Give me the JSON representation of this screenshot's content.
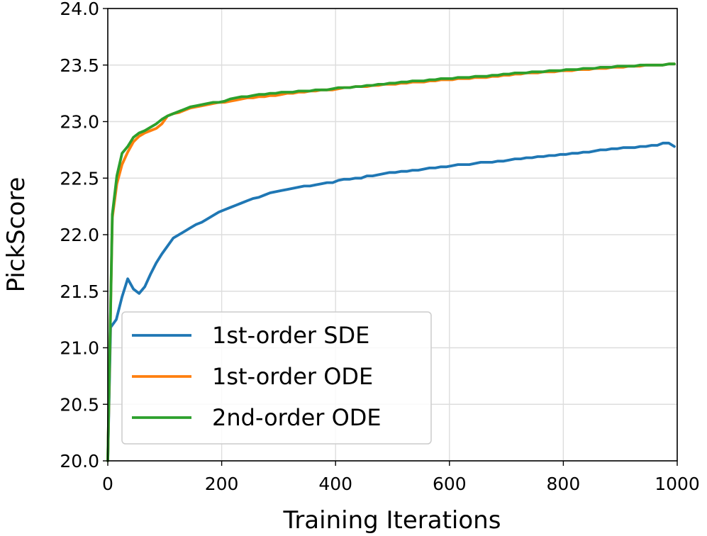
{
  "chart_data": {
    "type": "line",
    "title": "",
    "xlabel": "Training Iterations",
    "ylabel": "PickScore",
    "xlim": [
      0,
      1000
    ],
    "ylim": [
      20.0,
      24.0
    ],
    "xticks": [
      0,
      200,
      400,
      600,
      800,
      1000
    ],
    "xtick_labels": [
      "0",
      "200",
      "400",
      "600",
      "800",
      "1000"
    ],
    "yticks": [
      20.0,
      20.5,
      21.0,
      21.5,
      22.0,
      22.5,
      23.0,
      23.5,
      24.0
    ],
    "ytick_labels": [
      "20.0",
      "20.5",
      "21.0",
      "21.5",
      "22.0",
      "22.5",
      "23.0",
      "23.5",
      "24.0"
    ],
    "grid": true,
    "legend_position": "lower-left",
    "series": [
      {
        "name": "1st-order SDE",
        "color": "#1f77b4",
        "points": [
          [
            0,
            20.0
          ],
          [
            5,
            21.18
          ],
          [
            15,
            21.25
          ],
          [
            25,
            21.45
          ],
          [
            35,
            21.61
          ],
          [
            45,
            21.52
          ],
          [
            55,
            21.48
          ],
          [
            65,
            21.54
          ],
          [
            75,
            21.65
          ],
          [
            85,
            21.75
          ],
          [
            95,
            21.83
          ],
          [
            105,
            21.9
          ],
          [
            115,
            21.97
          ],
          [
            125,
            22.0
          ],
          [
            135,
            22.03
          ],
          [
            145,
            22.06
          ],
          [
            155,
            22.09
          ],
          [
            165,
            22.11
          ],
          [
            175,
            22.14
          ],
          [
            185,
            22.17
          ],
          [
            195,
            22.2
          ],
          [
            205,
            22.22
          ],
          [
            215,
            22.24
          ],
          [
            225,
            22.26
          ],
          [
            235,
            22.28
          ],
          [
            245,
            22.3
          ],
          [
            255,
            22.32
          ],
          [
            265,
            22.33
          ],
          [
            275,
            22.35
          ],
          [
            285,
            22.37
          ],
          [
            295,
            22.38
          ],
          [
            305,
            22.39
          ],
          [
            315,
            22.4
          ],
          [
            325,
            22.41
          ],
          [
            335,
            22.42
          ],
          [
            345,
            22.43
          ],
          [
            355,
            22.43
          ],
          [
            365,
            22.44
          ],
          [
            375,
            22.45
          ],
          [
            385,
            22.46
          ],
          [
            395,
            22.46
          ],
          [
            405,
            22.48
          ],
          [
            415,
            22.49
          ],
          [
            425,
            22.49
          ],
          [
            435,
            22.5
          ],
          [
            445,
            22.5
          ],
          [
            455,
            22.52
          ],
          [
            465,
            22.52
          ],
          [
            475,
            22.53
          ],
          [
            485,
            22.54
          ],
          [
            495,
            22.55
          ],
          [
            505,
            22.55
          ],
          [
            515,
            22.56
          ],
          [
            525,
            22.56
          ],
          [
            535,
            22.57
          ],
          [
            545,
            22.57
          ],
          [
            555,
            22.58
          ],
          [
            565,
            22.59
          ],
          [
            575,
            22.59
          ],
          [
            585,
            22.6
          ],
          [
            595,
            22.6
          ],
          [
            605,
            22.61
          ],
          [
            615,
            22.62
          ],
          [
            625,
            22.62
          ],
          [
            635,
            22.62
          ],
          [
            645,
            22.63
          ],
          [
            655,
            22.64
          ],
          [
            665,
            22.64
          ],
          [
            675,
            22.64
          ],
          [
            685,
            22.65
          ],
          [
            695,
            22.65
          ],
          [
            705,
            22.66
          ],
          [
            715,
            22.67
          ],
          [
            725,
            22.67
          ],
          [
            735,
            22.68
          ],
          [
            745,
            22.68
          ],
          [
            755,
            22.69
          ],
          [
            765,
            22.69
          ],
          [
            775,
            22.7
          ],
          [
            785,
            22.7
          ],
          [
            795,
            22.71
          ],
          [
            805,
            22.71
          ],
          [
            815,
            22.72
          ],
          [
            825,
            22.72
          ],
          [
            835,
            22.73
          ],
          [
            845,
            22.73
          ],
          [
            855,
            22.74
          ],
          [
            865,
            22.75
          ],
          [
            875,
            22.75
          ],
          [
            885,
            22.76
          ],
          [
            895,
            22.76
          ],
          [
            905,
            22.77
          ],
          [
            915,
            22.77
          ],
          [
            925,
            22.77
          ],
          [
            935,
            22.78
          ],
          [
            945,
            22.78
          ],
          [
            955,
            22.79
          ],
          [
            965,
            22.79
          ],
          [
            975,
            22.81
          ],
          [
            985,
            22.81
          ],
          [
            995,
            22.78
          ]
        ]
      },
      {
        "name": "1st-order ODE",
        "color": "#ff7f0e",
        "points": [
          [
            0,
            20.0
          ],
          [
            8,
            22.15
          ],
          [
            16,
            22.45
          ],
          [
            25,
            22.62
          ],
          [
            35,
            22.73
          ],
          [
            45,
            22.82
          ],
          [
            55,
            22.87
          ],
          [
            65,
            22.9
          ],
          [
            75,
            22.92
          ],
          [
            85,
            22.94
          ],
          [
            95,
            22.98
          ],
          [
            105,
            23.05
          ],
          [
            115,
            23.07
          ],
          [
            125,
            23.08
          ],
          [
            135,
            23.1
          ],
          [
            145,
            23.12
          ],
          [
            155,
            23.13
          ],
          [
            165,
            23.14
          ],
          [
            175,
            23.15
          ],
          [
            185,
            23.16
          ],
          [
            195,
            23.17
          ],
          [
            205,
            23.17
          ],
          [
            215,
            23.18
          ],
          [
            225,
            23.19
          ],
          [
            235,
            23.2
          ],
          [
            245,
            23.21
          ],
          [
            255,
            23.21
          ],
          [
            265,
            23.22
          ],
          [
            275,
            23.22
          ],
          [
            285,
            23.23
          ],
          [
            295,
            23.23
          ],
          [
            305,
            23.24
          ],
          [
            315,
            23.25
          ],
          [
            325,
            23.25
          ],
          [
            335,
            23.26
          ],
          [
            345,
            23.26
          ],
          [
            355,
            23.27
          ],
          [
            365,
            23.27
          ],
          [
            375,
            23.28
          ],
          [
            385,
            23.28
          ],
          [
            395,
            23.28
          ],
          [
            405,
            23.29
          ],
          [
            415,
            23.3
          ],
          [
            425,
            23.3
          ],
          [
            435,
            23.31
          ],
          [
            445,
            23.31
          ],
          [
            455,
            23.31
          ],
          [
            465,
            23.32
          ],
          [
            475,
            23.32
          ],
          [
            485,
            23.33
          ],
          [
            495,
            23.33
          ],
          [
            505,
            23.33
          ],
          [
            515,
            23.34
          ],
          [
            525,
            23.34
          ],
          [
            535,
            23.35
          ],
          [
            545,
            23.35
          ],
          [
            555,
            23.35
          ],
          [
            565,
            23.36
          ],
          [
            575,
            23.36
          ],
          [
            585,
            23.37
          ],
          [
            595,
            23.37
          ],
          [
            605,
            23.37
          ],
          [
            615,
            23.38
          ],
          [
            625,
            23.38
          ],
          [
            635,
            23.38
          ],
          [
            645,
            23.39
          ],
          [
            655,
            23.39
          ],
          [
            665,
            23.39
          ],
          [
            675,
            23.4
          ],
          [
            685,
            23.4
          ],
          [
            695,
            23.41
          ],
          [
            705,
            23.41
          ],
          [
            715,
            23.42
          ],
          [
            725,
            23.42
          ],
          [
            735,
            23.43
          ],
          [
            745,
            23.43
          ],
          [
            755,
            23.43
          ],
          [
            765,
            23.44
          ],
          [
            775,
            23.44
          ],
          [
            785,
            23.44
          ],
          [
            795,
            23.45
          ],
          [
            805,
            23.45
          ],
          [
            815,
            23.45
          ],
          [
            825,
            23.46
          ],
          [
            835,
            23.46
          ],
          [
            845,
            23.46
          ],
          [
            855,
            23.47
          ],
          [
            865,
            23.47
          ],
          [
            875,
            23.47
          ],
          [
            885,
            23.48
          ],
          [
            895,
            23.48
          ],
          [
            905,
            23.48
          ],
          [
            915,
            23.49
          ],
          [
            925,
            23.49
          ],
          [
            935,
            23.49
          ],
          [
            945,
            23.5
          ],
          [
            955,
            23.5
          ],
          [
            965,
            23.5
          ],
          [
            975,
            23.5
          ],
          [
            985,
            23.51
          ],
          [
            995,
            23.51
          ]
        ]
      },
      {
        "name": "2nd-order ODE",
        "color": "#2ca02c",
        "points": [
          [
            0,
            20.0
          ],
          [
            8,
            22.18
          ],
          [
            16,
            22.52
          ],
          [
            25,
            22.72
          ],
          [
            35,
            22.78
          ],
          [
            45,
            22.86
          ],
          [
            55,
            22.9
          ],
          [
            65,
            22.92
          ],
          [
            75,
            22.95
          ],
          [
            85,
            22.98
          ],
          [
            95,
            23.02
          ],
          [
            105,
            23.05
          ],
          [
            115,
            23.07
          ],
          [
            125,
            23.09
          ],
          [
            135,
            23.11
          ],
          [
            145,
            23.13
          ],
          [
            155,
            23.14
          ],
          [
            165,
            23.15
          ],
          [
            175,
            23.16
          ],
          [
            185,
            23.17
          ],
          [
            195,
            23.17
          ],
          [
            205,
            23.18
          ],
          [
            215,
            23.2
          ],
          [
            225,
            23.21
          ],
          [
            235,
            23.22
          ],
          [
            245,
            23.22
          ],
          [
            255,
            23.23
          ],
          [
            265,
            23.24
          ],
          [
            275,
            23.24
          ],
          [
            285,
            23.25
          ],
          [
            295,
            23.25
          ],
          [
            305,
            23.26
          ],
          [
            315,
            23.26
          ],
          [
            325,
            23.26
          ],
          [
            335,
            23.27
          ],
          [
            345,
            23.27
          ],
          [
            355,
            23.27
          ],
          [
            365,
            23.28
          ],
          [
            375,
            23.28
          ],
          [
            385,
            23.28
          ],
          [
            395,
            23.29
          ],
          [
            405,
            23.3
          ],
          [
            415,
            23.3
          ],
          [
            425,
            23.3
          ],
          [
            435,
            23.31
          ],
          [
            445,
            23.31
          ],
          [
            455,
            23.32
          ],
          [
            465,
            23.32
          ],
          [
            475,
            23.33
          ],
          [
            485,
            23.33
          ],
          [
            495,
            23.34
          ],
          [
            505,
            23.34
          ],
          [
            515,
            23.35
          ],
          [
            525,
            23.35
          ],
          [
            535,
            23.36
          ],
          [
            545,
            23.36
          ],
          [
            555,
            23.36
          ],
          [
            565,
            23.37
          ],
          [
            575,
            23.37
          ],
          [
            585,
            23.38
          ],
          [
            595,
            23.38
          ],
          [
            605,
            23.38
          ],
          [
            615,
            23.39
          ],
          [
            625,
            23.39
          ],
          [
            635,
            23.39
          ],
          [
            645,
            23.4
          ],
          [
            655,
            23.4
          ],
          [
            665,
            23.4
          ],
          [
            675,
            23.41
          ],
          [
            685,
            23.41
          ],
          [
            695,
            23.42
          ],
          [
            705,
            23.42
          ],
          [
            715,
            23.43
          ],
          [
            725,
            23.43
          ],
          [
            735,
            23.43
          ],
          [
            745,
            23.44
          ],
          [
            755,
            23.44
          ],
          [
            765,
            23.44
          ],
          [
            775,
            23.45
          ],
          [
            785,
            23.45
          ],
          [
            795,
            23.45
          ],
          [
            805,
            23.46
          ],
          [
            815,
            23.46
          ],
          [
            825,
            23.46
          ],
          [
            835,
            23.47
          ],
          [
            845,
            23.47
          ],
          [
            855,
            23.47
          ],
          [
            865,
            23.48
          ],
          [
            875,
            23.48
          ],
          [
            885,
            23.48
          ],
          [
            895,
            23.49
          ],
          [
            905,
            23.49
          ],
          [
            915,
            23.49
          ],
          [
            925,
            23.49
          ],
          [
            935,
            23.5
          ],
          [
            945,
            23.5
          ],
          [
            955,
            23.5
          ],
          [
            965,
            23.5
          ],
          [
            975,
            23.5
          ],
          [
            985,
            23.51
          ],
          [
            995,
            23.51
          ]
        ]
      }
    ]
  }
}
